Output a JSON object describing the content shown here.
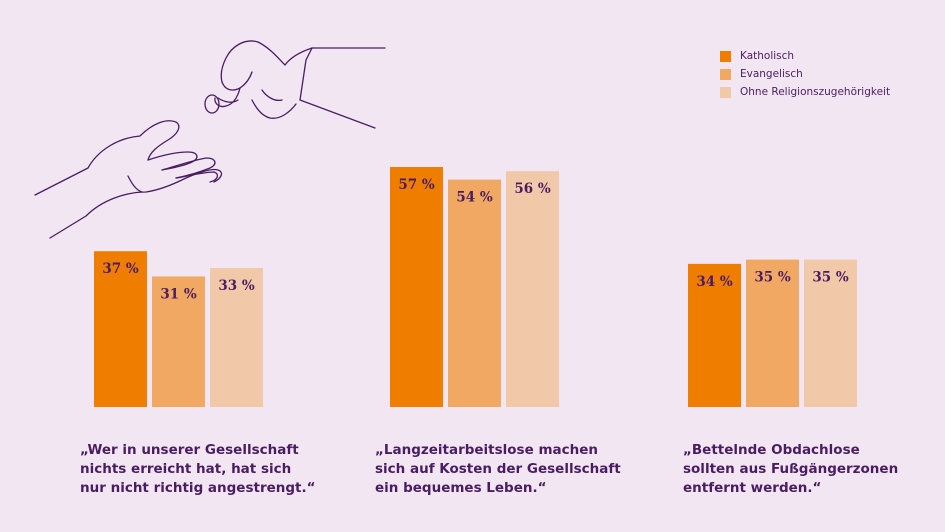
{
  "chart_data": {
    "type": "bar",
    "categories": [
      "„Wer in unserer Gesellschaft nichts erreicht hat, hat sich nur nicht richtig angestrengt.“",
      "„Langzeitarbeitslose machen sich auf Kosten der Gesellschaft ein bequemes Leben.“",
      "„Bettelnde Obdachlose sollten aus Fußgängerzonen entfernt werden.“"
    ],
    "category_lines": [
      [
        "„Wer in unserer Gesellschaft",
        "nichts erreicht hat, hat sich",
        "nur nicht richtig angestrengt.“"
      ],
      [
        "„Langzeitarbeitslose machen",
        "sich auf Kosten der Gesellschaft",
        "ein bequemes Leben.“"
      ],
      [
        "„Bettelnde Obdachlose",
        "sollten aus Fußgängerzonen",
        "entfernt werden.“"
      ]
    ],
    "series": [
      {
        "name": "Katholisch",
        "values": [
          37,
          57,
          34
        ],
        "labels": [
          "37 %",
          "57 %",
          "34 %"
        ],
        "color": "#ee7d00"
      },
      {
        "name": "Evangelisch",
        "values": [
          31,
          54,
          35
        ],
        "labels": [
          "31 %",
          "54 %",
          "35 %"
        ],
        "color": "#f0a862"
      },
      {
        "name": "Ohne Religionszugehörigkeit",
        "values": [
          33,
          56,
          35
        ],
        "labels": [
          "33 %",
          "56 %",
          "35 %"
        ],
        "color": "#f1c8a8"
      }
    ],
    "ylim": [
      0,
      60
    ],
    "legend": "top-right",
    "grid": false
  },
  "colors": {
    "background": "#f1e6f2",
    "text": "#4a1d63",
    "line_art": "#4a1d63"
  },
  "illustration": "hands-giving-coin-icon"
}
